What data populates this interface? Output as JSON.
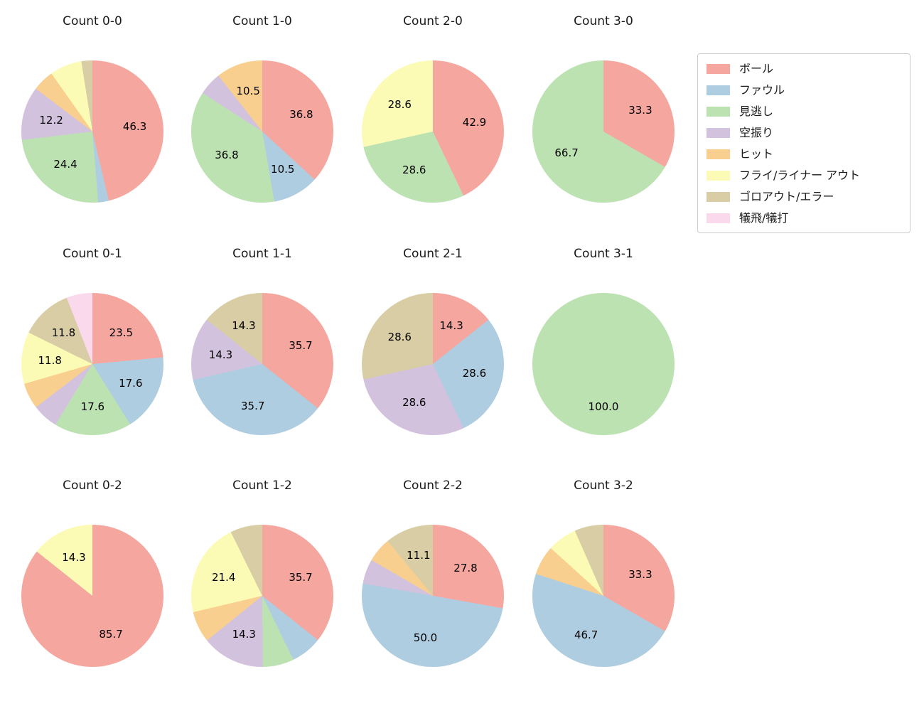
{
  "page": {
    "background": "#ffffff"
  },
  "legend": {
    "position": "top-right",
    "items": [
      {
        "label": "ボール",
        "color": "#f5a79f"
      },
      {
        "label": "ファウル",
        "color": "#aecde1"
      },
      {
        "label": "見逃し",
        "color": "#bce2b2"
      },
      {
        "label": "空振り",
        "color": "#d3c2de"
      },
      {
        "label": "ヒット",
        "color": "#f8cf8f"
      },
      {
        "label": "フライ/ライナー アウト",
        "color": "#fbfbb5"
      },
      {
        "label": "ゴロアウト/エラー",
        "color": "#d8cda4"
      },
      {
        "label": "犠飛/犠打",
        "color": "#fbd9ec"
      }
    ]
  },
  "chart_data": [
    {
      "type": "pie",
      "title": "Count 0-0",
      "unit": "percent",
      "start_angle": "top",
      "direction": "clockwise",
      "slices": [
        {
          "category": "ボール",
          "value": 46.3,
          "label": "46.3"
        },
        {
          "category": "ファウル",
          "value": 2.4,
          "label": ""
        },
        {
          "category": "見逃し",
          "value": 24.4,
          "label": "24.4"
        },
        {
          "category": "空振り",
          "value": 12.2,
          "label": "12.2"
        },
        {
          "category": "ヒット",
          "value": 4.9,
          "label": ""
        },
        {
          "category": "フライ/ライナー アウト",
          "value": 7.3,
          "label": ""
        },
        {
          "category": "ゴロアウト/エラー",
          "value": 2.4,
          "label": ""
        }
      ]
    },
    {
      "type": "pie",
      "title": "Count 1-0",
      "unit": "percent",
      "start_angle": "top",
      "direction": "clockwise",
      "slices": [
        {
          "category": "ボール",
          "value": 36.8,
          "label": "36.8"
        },
        {
          "category": "ファウル",
          "value": 10.5,
          "label": "10.5"
        },
        {
          "category": "見逃し",
          "value": 36.8,
          "label": "36.8"
        },
        {
          "category": "空振り",
          "value": 5.3,
          "label": ""
        },
        {
          "category": "ヒット",
          "value": 10.5,
          "label": "10.5"
        }
      ]
    },
    {
      "type": "pie",
      "title": "Count 2-0",
      "unit": "percent",
      "start_angle": "top",
      "direction": "clockwise",
      "slices": [
        {
          "category": "ボール",
          "value": 42.9,
          "label": "42.9"
        },
        {
          "category": "見逃し",
          "value": 28.6,
          "label": "28.6"
        },
        {
          "category": "フライ/ライナー アウト",
          "value": 28.6,
          "label": "28.6"
        }
      ]
    },
    {
      "type": "pie",
      "title": "Count 3-0",
      "unit": "percent",
      "start_angle": "top",
      "direction": "clockwise",
      "slices": [
        {
          "category": "ボール",
          "value": 33.3,
          "label": "33.3"
        },
        {
          "category": "見逃し",
          "value": 66.7,
          "label": "66.7"
        }
      ]
    },
    {
      "type": "pie",
      "title": "Count 0-1",
      "unit": "percent",
      "start_angle": "top",
      "direction": "clockwise",
      "slices": [
        {
          "category": "ボール",
          "value": 23.5,
          "label": "23.5"
        },
        {
          "category": "ファウル",
          "value": 17.6,
          "label": "17.6"
        },
        {
          "category": "見逃し",
          "value": 17.6,
          "label": "17.6"
        },
        {
          "category": "空振り",
          "value": 5.9,
          "label": ""
        },
        {
          "category": "ヒット",
          "value": 5.9,
          "label": ""
        },
        {
          "category": "フライ/ライナー アウト",
          "value": 11.8,
          "label": "11.8"
        },
        {
          "category": "ゴロアウト/エラー",
          "value": 11.8,
          "label": "11.8"
        },
        {
          "category": "犠飛/犠打",
          "value": 5.9,
          "label": ""
        }
      ]
    },
    {
      "type": "pie",
      "title": "Count 1-1",
      "unit": "percent",
      "start_angle": "top",
      "direction": "clockwise",
      "slices": [
        {
          "category": "ボール",
          "value": 35.7,
          "label": "35.7"
        },
        {
          "category": "ファウル",
          "value": 35.7,
          "label": "35.7"
        },
        {
          "category": "空振り",
          "value": 14.3,
          "label": "14.3"
        },
        {
          "category": "ゴロアウト/エラー",
          "value": 14.3,
          "label": "14.3"
        }
      ]
    },
    {
      "type": "pie",
      "title": "Count 2-1",
      "unit": "percent",
      "start_angle": "top",
      "direction": "clockwise",
      "slices": [
        {
          "category": "ボール",
          "value": 14.3,
          "label": "14.3"
        },
        {
          "category": "ファウル",
          "value": 28.6,
          "label": "28.6"
        },
        {
          "category": "空振り",
          "value": 28.6,
          "label": "28.6"
        },
        {
          "category": "ゴロアウト/エラー",
          "value": 28.6,
          "label": "28.6"
        }
      ]
    },
    {
      "type": "pie",
      "title": "Count 3-1",
      "unit": "percent",
      "start_angle": "top",
      "direction": "clockwise",
      "slices": [
        {
          "category": "見逃し",
          "value": 100.0,
          "label": "100.0"
        }
      ]
    },
    {
      "type": "pie",
      "title": "Count 0-2",
      "unit": "percent",
      "start_angle": "top",
      "direction": "clockwise",
      "slices": [
        {
          "category": "ボール",
          "value": 85.7,
          "label": "85.7"
        },
        {
          "category": "フライ/ライナー アウト",
          "value": 14.3,
          "label": "14.3"
        }
      ]
    },
    {
      "type": "pie",
      "title": "Count 1-2",
      "unit": "percent",
      "start_angle": "top",
      "direction": "clockwise",
      "slices": [
        {
          "category": "ボール",
          "value": 35.7,
          "label": "35.7"
        },
        {
          "category": "ファウル",
          "value": 7.1,
          "label": ""
        },
        {
          "category": "見逃し",
          "value": 7.1,
          "label": ""
        },
        {
          "category": "空振り",
          "value": 14.3,
          "label": "14.3"
        },
        {
          "category": "ヒット",
          "value": 7.1,
          "label": ""
        },
        {
          "category": "フライ/ライナー アウト",
          "value": 21.4,
          "label": "21.4"
        },
        {
          "category": "ゴロアウト/エラー",
          "value": 7.1,
          "label": ""
        }
      ]
    },
    {
      "type": "pie",
      "title": "Count 2-2",
      "unit": "percent",
      "start_angle": "top",
      "direction": "clockwise",
      "slices": [
        {
          "category": "ボール",
          "value": 27.8,
          "label": "27.8"
        },
        {
          "category": "ファウル",
          "value": 50.0,
          "label": "50.0"
        },
        {
          "category": "空振り",
          "value": 5.6,
          "label": ""
        },
        {
          "category": "ヒット",
          "value": 5.6,
          "label": ""
        },
        {
          "category": "ゴロアウト/エラー",
          "value": 11.1,
          "label": "11.1"
        }
      ]
    },
    {
      "type": "pie",
      "title": "Count 3-2",
      "unit": "percent",
      "start_angle": "top",
      "direction": "clockwise",
      "slices": [
        {
          "category": "ボール",
          "value": 33.3,
          "label": "33.3"
        },
        {
          "category": "ファウル",
          "value": 46.7,
          "label": "46.7"
        },
        {
          "category": "ヒット",
          "value": 6.7,
          "label": ""
        },
        {
          "category": "フライ/ライナー アウト",
          "value": 6.7,
          "label": ""
        },
        {
          "category": "ゴロアウト/エラー",
          "value": 6.7,
          "label": ""
        }
      ]
    }
  ]
}
